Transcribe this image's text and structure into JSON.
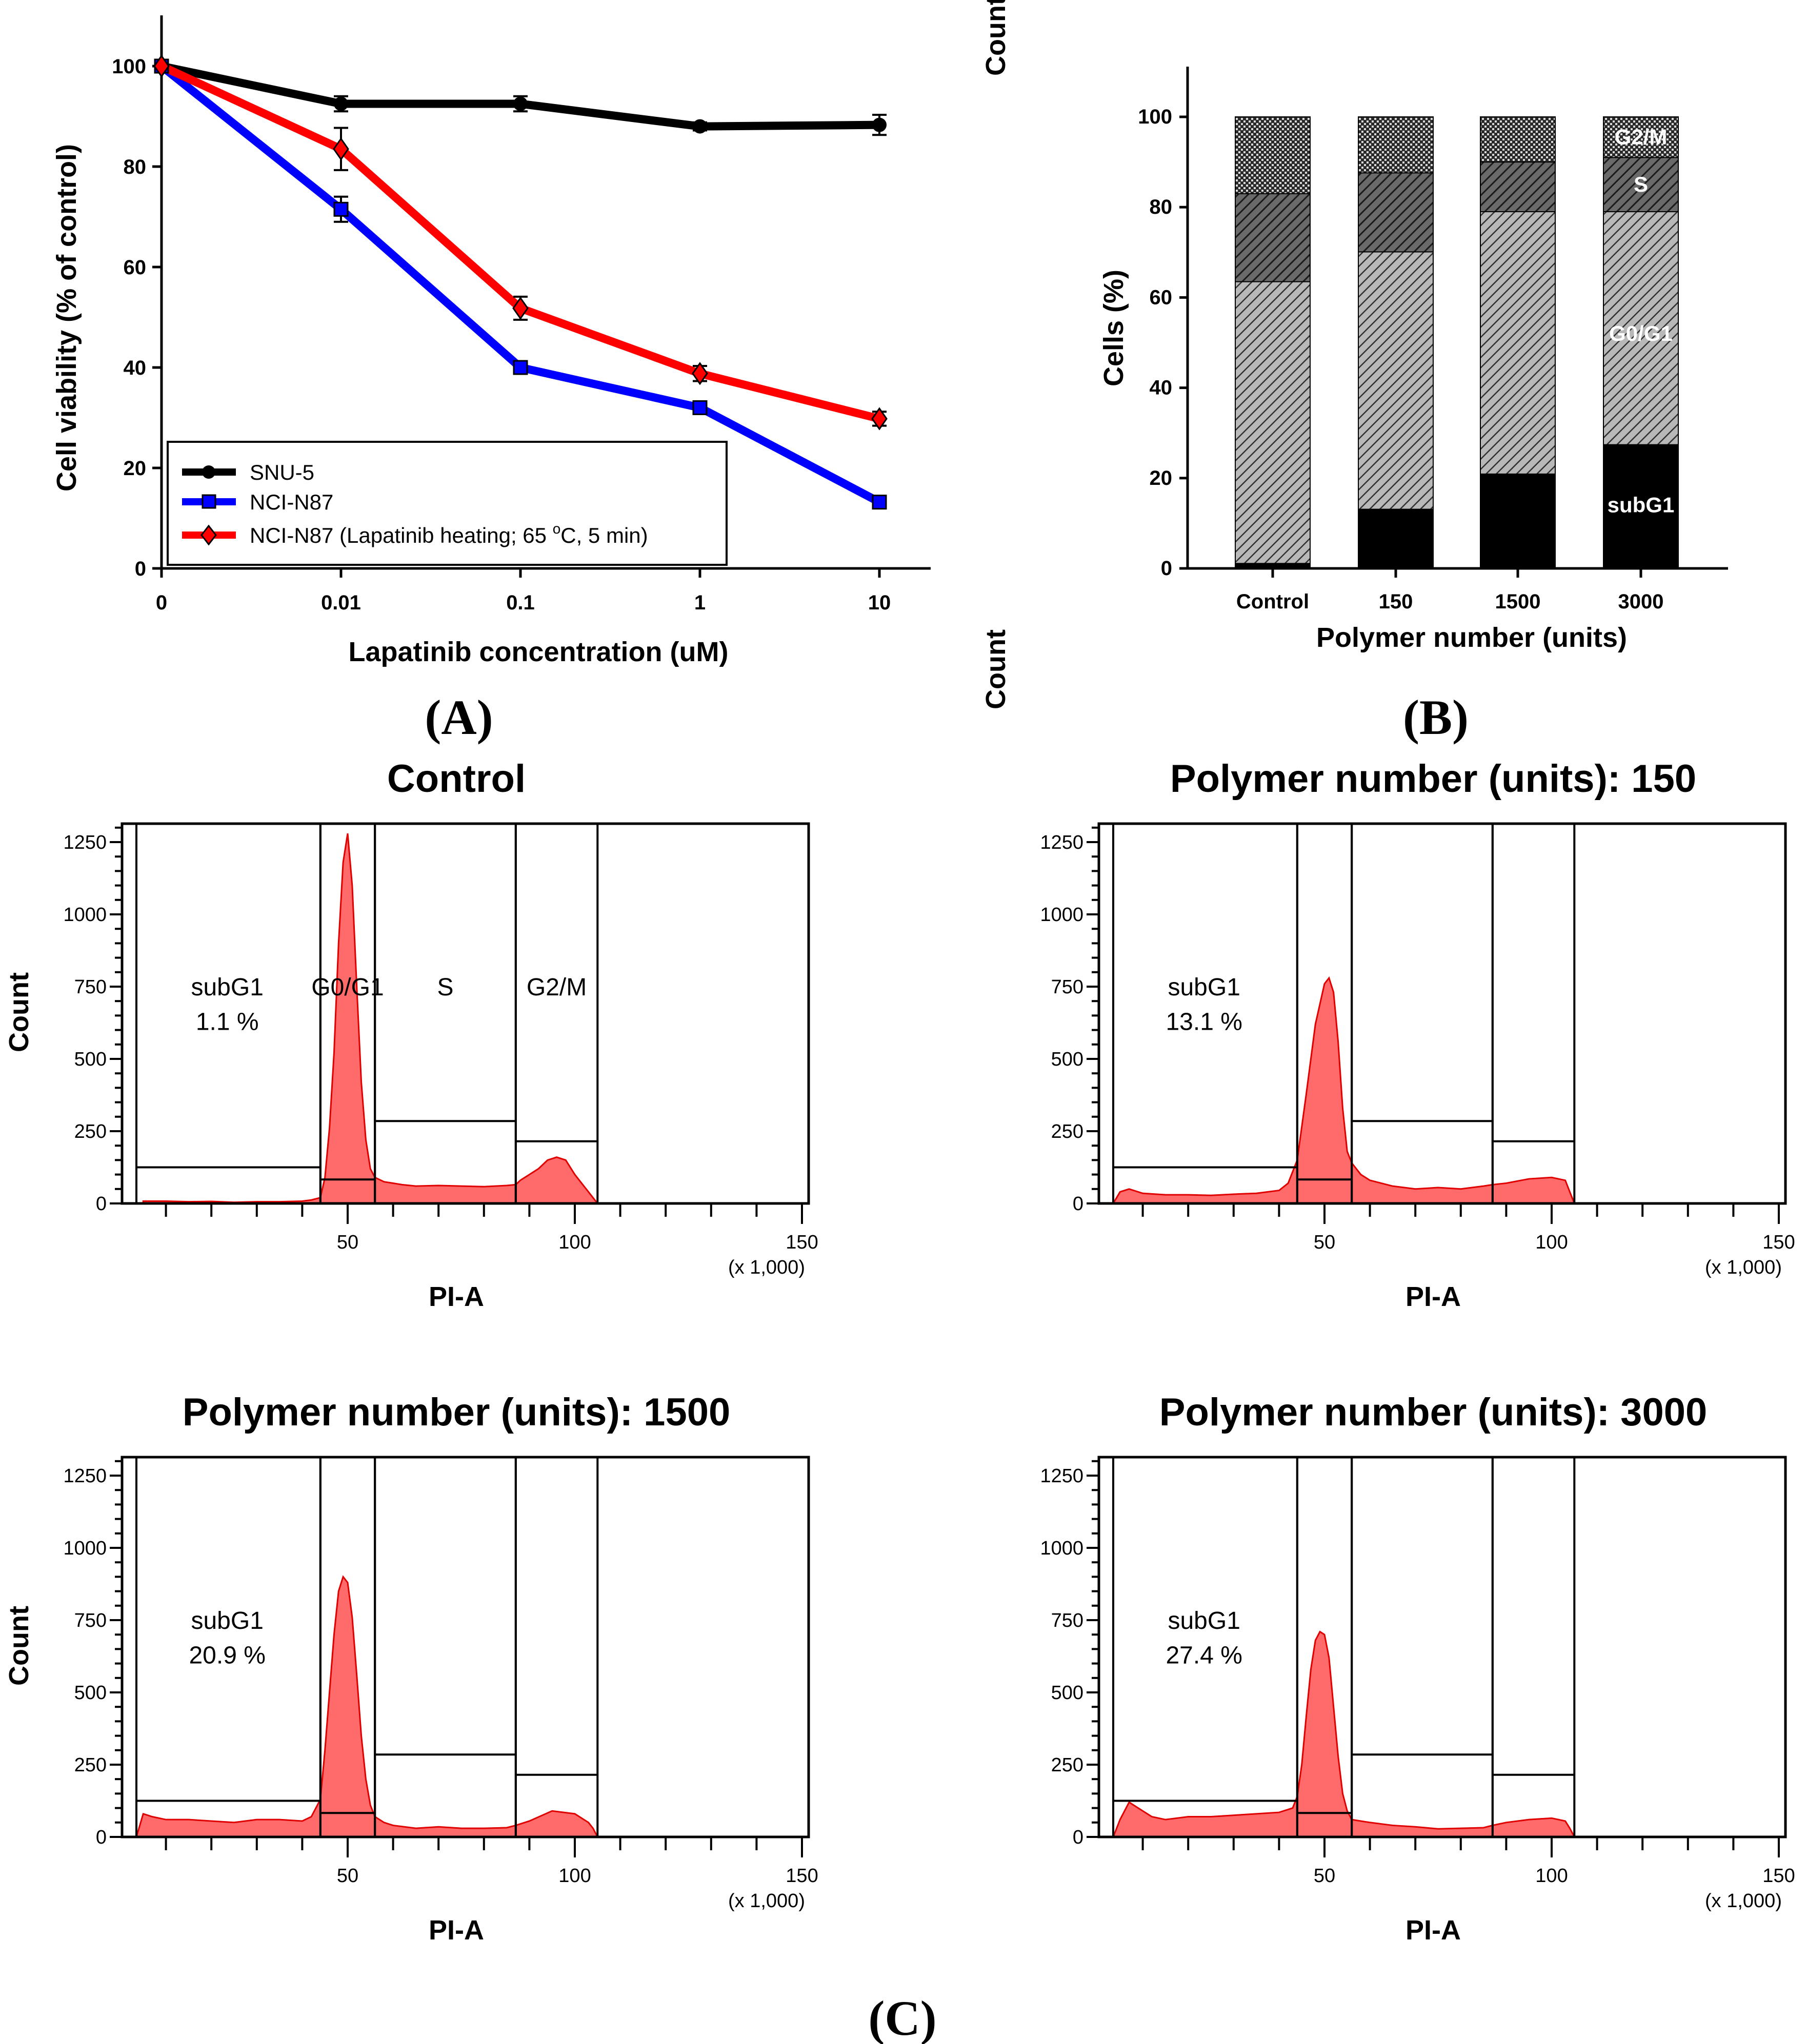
{
  "chart_data": [
    {
      "id": "A",
      "type": "line",
      "panel_label": "(A)",
      "title": "",
      "xlabel": "Lapatinib concentration (uM)",
      "ylabel": "Cell viability (% of control)",
      "x": [
        "0",
        "0.01",
        "0.1",
        "1",
        "10"
      ],
      "ylim": [
        0,
        110
      ],
      "yticks": [
        0,
        20,
        40,
        60,
        80,
        100
      ],
      "grid": false,
      "legend_position": "bottom-left",
      "series": [
        {
          "name": "SNU-5",
          "color": "#000000",
          "marker": "circle",
          "values": [
            100,
            92.5,
            92.5,
            88,
            88.3
          ],
          "errors": [
            0,
            1.5,
            1.5,
            0.8,
            2.0
          ]
        },
        {
          "name": "NCI-N87",
          "color": "#0000ff",
          "marker": "square",
          "values": [
            100,
            71.5,
            40,
            32,
            13.2
          ],
          "errors": [
            0,
            2.5,
            1.2,
            0.8,
            0.8
          ]
        },
        {
          "name": "NCI-N87 (Lapatinib heating; 65 °C, 5 min)",
          "color": "#ff0000",
          "marker": "diamond",
          "values": [
            100,
            83.5,
            51.8,
            38.8,
            29.8
          ],
          "errors": [
            0,
            4.2,
            2.3,
            1.5,
            1.4
          ]
        }
      ],
      "legend_labels": {
        "s0": "SNU-5",
        "s1": "NCI-N87",
        "s2_pre": "NCI-N87 (Lapatinib heating; 65 ",
        "s2_sup": "o",
        "s2_post": "C, 5 min)"
      }
    },
    {
      "id": "B",
      "type": "bar",
      "stacked": true,
      "panel_label": "(B)",
      "title": "",
      "xlabel": "Polymer number (units)",
      "ylabel": "Cells (%)",
      "categories": [
        "Control",
        "150",
        "1500",
        "3000"
      ],
      "ylim": [
        0,
        110
      ],
      "yticks": [
        0,
        20,
        40,
        60,
        80,
        100
      ],
      "grid": false,
      "series": [
        {
          "name": "subG1",
          "fill": "solid-black",
          "values": [
            1.1,
            13.1,
            20.9,
            27.4
          ]
        },
        {
          "name": "G0/G1",
          "fill": "light-hatch",
          "values": [
            62.4,
            57.0,
            58.1,
            51.6
          ]
        },
        {
          "name": "S",
          "fill": "dark-hatch",
          "values": [
            19.5,
            17.5,
            11.0,
            12.0
          ]
        },
        {
          "name": "G2/M",
          "fill": "crosshatch",
          "values": [
            17.0,
            12.4,
            10.0,
            9.0
          ]
        }
      ],
      "inline_labels": [
        "G2/M",
        "S",
        "G0/G1",
        "subG1"
      ]
    },
    {
      "id": "C1",
      "type": "area",
      "title": "Control",
      "xlabel": "PI-A",
      "xunit_note": "(x 1,000)",
      "ylabel": "Count",
      "xlim": [
        0,
        150
      ],
      "ylim": [
        0,
        1300
      ],
      "xticks": [
        50,
        100,
        150
      ],
      "yticks": [
        0,
        250,
        500,
        750,
        1000,
        1250
      ],
      "color": "#ff6b6b",
      "gates": [
        {
          "name": "subG1",
          "x": [
            3.5,
            44
          ],
          "bar_y": 125
        },
        {
          "name": "G0/G1",
          "x": [
            44,
            56
          ],
          "bar_y": 83
        },
        {
          "name": "S",
          "x": [
            56,
            87
          ],
          "bar_y": 285
        },
        {
          "name": "G2/M",
          "x": [
            87,
            105
          ],
          "bar_y": 215
        }
      ],
      "gate_labels": [
        "subG1",
        "G0/G1",
        "S",
        "G2/M"
      ],
      "annotation": "1.1 %",
      "histogram": {
        "x": [
          5,
          10,
          15,
          20,
          25,
          30,
          35,
          40,
          42,
          44,
          45,
          46,
          47,
          48,
          49,
          50,
          51,
          52,
          53,
          54,
          55,
          56,
          58,
          60,
          62,
          65,
          70,
          75,
          80,
          85,
          87,
          88,
          90,
          92,
          94,
          96,
          98,
          100,
          102,
          104,
          105
        ],
        "y": [
          8,
          8,
          6,
          7,
          4,
          6,
          6,
          8,
          12,
          20,
          90,
          260,
          520,
          900,
          1180,
          1280,
          1100,
          750,
          420,
          220,
          120,
          90,
          75,
          70,
          65,
          60,
          62,
          60,
          58,
          62,
          65,
          80,
          100,
          120,
          150,
          160,
          150,
          100,
          60,
          20,
          0
        ]
      }
    },
    {
      "id": "C2",
      "type": "area",
      "title": "Polymer number (units): 150",
      "xlabel": "PI-A",
      "xunit_note": "(x 1,000)",
      "ylabel": "Count",
      "xlim": [
        0,
        150
      ],
      "ylim": [
        0,
        1300
      ],
      "xticks": [
        50,
        100,
        150
      ],
      "yticks": [
        0,
        250,
        500,
        750,
        1000,
        1250
      ],
      "color": "#ff6b6b",
      "gates": [
        {
          "name": "subG1",
          "x": [
            3.5,
            44
          ],
          "bar_y": 125
        },
        {
          "name": "G0/G1",
          "x": [
            44,
            56
          ],
          "bar_y": 83
        },
        {
          "name": "S",
          "x": [
            56,
            87
          ],
          "bar_y": 285
        },
        {
          "name": "G2/M",
          "x": [
            87,
            105
          ],
          "bar_y": 215
        }
      ],
      "gate_labels": [
        "subG1"
      ],
      "annotation": "13.1 %",
      "histogram": {
        "x": [
          3.5,
          5,
          7,
          10,
          15,
          20,
          25,
          30,
          35,
          40,
          42,
          44,
          46,
          48,
          50,
          51,
          52,
          53,
          54,
          55,
          56,
          58,
          60,
          65,
          70,
          75,
          80,
          85,
          87,
          90,
          95,
          100,
          103,
          104,
          105
        ],
        "y": [
          0,
          40,
          50,
          35,
          30,
          30,
          28,
          32,
          35,
          45,
          70,
          150,
          380,
          620,
          760,
          780,
          730,
          560,
          330,
          180,
          140,
          100,
          80,
          60,
          50,
          55,
          50,
          60,
          65,
          70,
          85,
          90,
          80,
          40,
          0
        ]
      }
    },
    {
      "id": "C3",
      "type": "area",
      "title": "Polymer number (units): 1500",
      "xlabel": "PI-A",
      "xunit_note": "(x 1,000)",
      "ylabel": "Count",
      "xlim": [
        0,
        150
      ],
      "ylim": [
        0,
        1300
      ],
      "xticks": [
        50,
        100,
        150
      ],
      "yticks": [
        0,
        250,
        500,
        750,
        1000,
        1250
      ],
      "color": "#ff6b6b",
      "gates": [
        {
          "name": "subG1",
          "x": [
            3.5,
            44
          ],
          "bar_y": 125
        },
        {
          "name": "G0/G1",
          "x": [
            44,
            56
          ],
          "bar_y": 83
        },
        {
          "name": "S",
          "x": [
            56,
            87
          ],
          "bar_y": 285
        },
        {
          "name": "G2/M",
          "x": [
            87,
            105
          ],
          "bar_y": 215
        }
      ],
      "gate_labels": [
        "subG1"
      ],
      "annotation": "20.9 %",
      "histogram": {
        "x": [
          3.5,
          5,
          7,
          10,
          15,
          20,
          25,
          30,
          35,
          40,
          42,
          44,
          45,
          46,
          47,
          48,
          49,
          50,
          51,
          52,
          53,
          54,
          55,
          56,
          58,
          60,
          65,
          70,
          75,
          80,
          85,
          87,
          90,
          95,
          100,
          103,
          104,
          105
        ],
        "y": [
          0,
          80,
          70,
          60,
          60,
          55,
          50,
          60,
          60,
          55,
          70,
          130,
          300,
          500,
          700,
          850,
          900,
          880,
          760,
          560,
          350,
          200,
          110,
          70,
          50,
          40,
          30,
          35,
          30,
          30,
          32,
          40,
          55,
          90,
          80,
          50,
          30,
          0
        ]
      }
    },
    {
      "id": "C4",
      "type": "area",
      "title": "Polymer number (units): 3000",
      "xlabel": "PI-A",
      "xunit_note": "(x 1,000)",
      "ylabel": "Count",
      "xlim": [
        0,
        150
      ],
      "ylim": [
        0,
        1300
      ],
      "xticks": [
        50,
        100,
        150
      ],
      "yticks": [
        0,
        250,
        500,
        750,
        1000,
        1250
      ],
      "color": "#ff6b6b",
      "gates": [
        {
          "name": "subG1",
          "x": [
            3.5,
            44
          ],
          "bar_y": 125
        },
        {
          "name": "G0/G1",
          "x": [
            44,
            56
          ],
          "bar_y": 83
        },
        {
          "name": "S",
          "x": [
            56,
            87
          ],
          "bar_y": 285
        },
        {
          "name": "G2/M",
          "x": [
            87,
            105
          ],
          "bar_y": 215
        }
      ],
      "gate_labels": [
        "subG1"
      ],
      "annotation": "27.4 %",
      "histogram": {
        "x": [
          3.5,
          5,
          7,
          9,
          12,
          15,
          20,
          25,
          30,
          35,
          40,
          43,
          44,
          45,
          46,
          47,
          48,
          49,
          50,
          51,
          52,
          53,
          54,
          55,
          56,
          58,
          60,
          65,
          70,
          75,
          80,
          85,
          87,
          90,
          95,
          100,
          103,
          104,
          105
        ],
        "y": [
          0,
          60,
          120,
          100,
          70,
          60,
          70,
          70,
          75,
          80,
          85,
          100,
          140,
          250,
          420,
          580,
          680,
          710,
          700,
          620,
          450,
          280,
          150,
          90,
          60,
          55,
          50,
          40,
          35,
          28,
          30,
          32,
          40,
          50,
          60,
          65,
          55,
          30,
          0
        ]
      }
    }
  ],
  "panel_C_label": "(C)"
}
